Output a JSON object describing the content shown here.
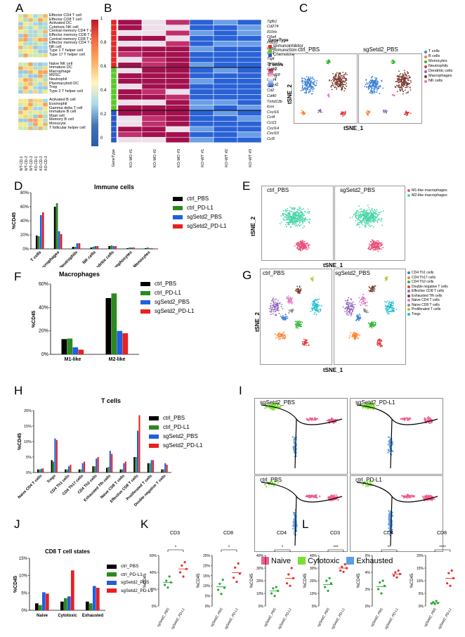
{
  "panels": {
    "A": "A",
    "B": "B",
    "C": "C",
    "D": "D",
    "E": "E",
    "F": "F",
    "G": "G",
    "H": "H",
    "I": "I",
    "J": "J",
    "K": "K",
    "L": "L"
  },
  "panelA": {
    "group1": [
      "Effector CD4 T cell",
      "Effector CD8 T cell",
      "Activated DC",
      "Cytotoxic NK cell",
      "Central memory CD4 T cell",
      "Effector memory CD8 T cell",
      "Central memory CD8 T cell",
      "Effector memory CD4 T cell",
      "NK cell",
      "Type 1 T helper cell",
      "Type 17 T helper cell"
    ],
    "group2": [
      "Naive NK cell",
      "Immature DC",
      "Macrophage",
      "MDSC",
      "Neutrophil",
      "Plasmacytoid DC",
      "Treg",
      "Type 2 T helper cell"
    ],
    "group3": [
      "Activated B cell",
      "Eosinophil",
      "Gamma delta T cell",
      "Immature B cell",
      "Mast cell",
      "Memory B cell",
      "Monocyte",
      "T follicular helper cell"
    ],
    "colorbar": [
      "1",
      "0.8",
      "0.6",
      "0.4",
      "0.2",
      "0"
    ],
    "cols": [
      "WT-CD-1",
      "WT-CD-2",
      "WT-CD-3",
      "KO-CD-1",
      "KO-CD-2",
      "KO-CD-3"
    ]
  },
  "panelB": {
    "genes": [
      "Tgfb1",
      "Cd274",
      "Il10rb",
      "Ctla4",
      "Pdcd1",
      "Lag3",
      "Idb1",
      "Tigit",
      "Sema4a",
      "Cd80",
      "Tnfsf18",
      "Cd84",
      "Cd27",
      "Cd2",
      "Cd40",
      "Tnfsf13b",
      "Icos",
      "Cxcl16",
      "Ccl4",
      "Ccl11",
      "Cxcl14",
      "Cxcl10",
      "Ccl5"
    ],
    "cols": [
      "GeneType",
      "KO-MO #1",
      "KO-MO #2",
      "KO-MO #3",
      "KO-WT #1",
      "KO-WT #2",
      "KO-WT #3"
    ],
    "legend_title": "GeneType",
    "legend_items": [
      "Immunoinhibitor",
      "ImmuneStim",
      "Chemokine"
    ],
    "z_title": "Z score",
    "z_ticks": [
      "2",
      "0",
      "-2"
    ]
  },
  "panelC": {
    "left_title": "ctrl_PBS",
    "right_title": "sgSetd2_PBS",
    "xlabel": "tSNE_1",
    "ylabel": "tSNE_2",
    "legend": [
      {
        "label": "T cells",
        "color": "#3d82d6"
      },
      {
        "label": "B cells",
        "color": "#ff7f27"
      },
      {
        "label": "Monocytes",
        "color": "#2eb82e"
      },
      {
        "label": "Neutrophils",
        "color": "#e03a3a"
      },
      {
        "label": "Dendritic cells",
        "color": "#9467bd"
      },
      {
        "label": "Macrophages",
        "color": "#7a3b2e"
      },
      {
        "label": "NK cells",
        "color": "#e377c2"
      }
    ]
  },
  "panelD": {
    "title": "Immune cells",
    "ylabel": "%CD45",
    "chart_data": {
      "type": "bar",
      "title": "Immune cells",
      "ylabel": "%CD45",
      "ylim": [
        0,
        80
      ],
      "yticks": [
        "0%",
        "20%",
        "40%",
        "60%",
        "80%"
      ],
      "categories": [
        "T cells",
        "Macrophages",
        "Neutrophils",
        "NK cells",
        "Dendritic cells",
        "B lymphocytes",
        "Monocytes"
      ],
      "series": [
        {
          "name": "ctrl_PBS",
          "color": "#000000",
          "values": [
            19,
            60,
            3,
            2,
            4,
            1,
            1
          ]
        },
        {
          "name": "ctrl_PD-L1",
          "color": "#2c8a1e",
          "values": [
            18,
            65,
            3,
            3,
            5,
            2,
            2
          ]
        },
        {
          "name": "sgSetd2_PBS",
          "color": "#1f5fe0",
          "values": [
            48,
            25,
            8,
            4,
            4,
            2,
            1
          ]
        },
        {
          "name": "sgSetd2_PD-L1",
          "color": "#e82020",
          "values": [
            52,
            21,
            8,
            4,
            4,
            2,
            1
          ]
        }
      ]
    }
  },
  "panelE": {
    "left_title": "ctrl_PBS",
    "right_title": "sgSetd2_PBS",
    "xlabel": "tSNE_1",
    "ylabel": "tSNE_2",
    "legend": [
      {
        "label": "M1-like macrophages",
        "color": "#e8507a"
      },
      {
        "label": "M2-like macrophages",
        "color": "#49d6a8"
      }
    ]
  },
  "panelF": {
    "title": "Macrophages",
    "ylabel": "%CD45",
    "chart_data": {
      "type": "bar",
      "title": "Macrophages",
      "ylabel": "%CD45",
      "ylim": [
        0,
        60
      ],
      "yticks": [
        "0%",
        "20%",
        "40%",
        "60%"
      ],
      "categories": [
        "M1-like",
        "M2-like"
      ],
      "series": [
        {
          "name": "ctrl_PBS",
          "color": "#000000",
          "values": [
            13,
            48
          ]
        },
        {
          "name": "ctrl_PD-L1",
          "color": "#2c8a1e",
          "values": [
            13.5,
            52
          ]
        },
        {
          "name": "sgSetd2_PBS",
          "color": "#1f5fe0",
          "values": [
            6,
            20
          ]
        },
        {
          "name": "sgSetd2_PD-L1",
          "color": "#e82020",
          "values": [
            4,
            18
          ]
        }
      ]
    }
  },
  "panelG": {
    "left_title": "ctrl_PBS",
    "right_title": "sgSetd2_PBS",
    "xlabel": "tSNE_1",
    "ylabel": "tSNE_2",
    "legend": [
      {
        "label": "CD4 Th1 cells",
        "color": "#3d82d6"
      },
      {
        "label": "CD4 Th17 cells",
        "color": "#ff7f27"
      },
      {
        "label": "CD4 Th2 cells",
        "color": "#2eb82e"
      },
      {
        "label": "Double negative T cells",
        "color": "#e03a3a"
      },
      {
        "label": "Effective CD8 T cells",
        "color": "#9467bd"
      },
      {
        "label": "Exhausted Tfh cells",
        "color": "#7a3b2e"
      },
      {
        "label": "Naive CD4 T cells",
        "color": "#e377c2"
      },
      {
        "label": "Naive CD8 T cells",
        "color": "#8c8c8c"
      },
      {
        "label": "Proliferated T cells",
        "color": "#bcbd22"
      },
      {
        "label": "Tregs",
        "color": "#17becf"
      }
    ]
  },
  "panelH": {
    "title": "T cells",
    "ylabel": "%CD45",
    "chart_data": {
      "type": "bar",
      "title": "T cells",
      "ylabel": "%CD45",
      "ylim": [
        0,
        20
      ],
      "yticks": [
        "0%",
        "5%",
        "10%",
        "15%",
        "20%"
      ],
      "categories": [
        "Naive CD4 T cells",
        "Tregs",
        "CD4 Th1 cells",
        "CD4 Th17 cells",
        "CD4 Th2 cells",
        "Exhausted Tfh cells",
        "Naive CD8 T cells",
        "Effective CD8 T cells",
        "Proliferated T cells",
        "Double negative T cells"
      ],
      "series": [
        {
          "name": "ctrl_PBS",
          "color": "#000000",
          "values": [
            1,
            4,
            1,
            1,
            2,
            1.5,
            1,
            5,
            3,
            1
          ]
        },
        {
          "name": "ctrl_PD-L1",
          "color": "#2c8a1e",
          "values": [
            1,
            3.5,
            1,
            1,
            2,
            1.8,
            1,
            5,
            3,
            1
          ]
        },
        {
          "name": "sgSetd2_PBS",
          "color": "#1f5fe0",
          "values": [
            1.2,
            11,
            2,
            3,
            4.5,
            7,
            3,
            13.5,
            4,
            3
          ]
        },
        {
          "name": "sgSetd2_PD-L1",
          "color": "#e82020",
          "values": [
            1.3,
            10.5,
            2.5,
            3.5,
            5,
            6,
            3.5,
            18.5,
            4,
            2.5
          ]
        }
      ]
    }
  },
  "panelI": {
    "titles": [
      "sgSetd2_PBS",
      "sgSetd2_PD-L1",
      "ctrl_PBS",
      "ctrl_PD-L1"
    ],
    "legend": [
      {
        "label": "Naive",
        "color": "#f0608a"
      },
      {
        "label": "Cytotoxic",
        "color": "#7be02c"
      },
      {
        "label": "Exhausted",
        "color": "#5a9ee8"
      }
    ]
  },
  "panelJ": {
    "title": "CD8 T cell states",
    "ylabel": "%CD45",
    "chart_data": {
      "type": "bar",
      "title": "CD8 T cell states",
      "ylabel": "%CD45",
      "ylim": [
        0,
        15
      ],
      "yticks": [
        "0%",
        "5%",
        "10%",
        "15%"
      ],
      "categories": [
        "Naive",
        "Cytotoxic",
        "Exhausted"
      ],
      "series": [
        {
          "name": "ctrl_PBS",
          "color": "#000000",
          "values": [
            2,
            2.5,
            2.5
          ]
        },
        {
          "name": "ctrl_PD-L1",
          "color": "#2c8a1e",
          "values": [
            1.5,
            3.5,
            2
          ]
        },
        {
          "name": "sgSetd2_PBS",
          "color": "#1f5fe0",
          "values": [
            5.2,
            4,
            7
          ]
        },
        {
          "name": "sgSetd2_PD-L1",
          "color": "#e82020",
          "values": [
            4.8,
            11.5,
            6.5
          ]
        }
      ]
    }
  },
  "panelK": [
    {
      "title": "CD3",
      "ylabel": "%CD45",
      "yticks": [
        "0%",
        "20%",
        "40%",
        "60%"
      ],
      "ymax": 60,
      "sig": "*",
      "groups": [
        "sgSetd2_PBS",
        "sgSetd2_PD-L1"
      ],
      "points": [
        [
          25,
          30,
          22,
          35,
          28
        ],
        [
          40,
          48,
          35,
          52,
          44
        ]
      ],
      "means": [
        28,
        44
      ]
    },
    {
      "title": "CD8",
      "ylabel": "%CD45",
      "yticks": [
        "0%",
        "5%",
        "10%",
        "15%",
        "20%",
        "25%"
      ],
      "ymax": 25,
      "sig": "*",
      "groups": [
        "sgSetd2_PBS",
        "sgSetd2_PD-L1"
      ],
      "points": [
        [
          8,
          11,
          6,
          13,
          9
        ],
        [
          14,
          19,
          12,
          21,
          16
        ]
      ],
      "means": [
        9.5,
        16.5
      ]
    },
    {
      "title": "CD4",
      "ylabel": "%CD45",
      "yticks": [
        "0%",
        "10%",
        "20%",
        "30%",
        "40%"
      ],
      "ymax": 40,
      "sig": "*",
      "groups": [
        "sgSetd2_PBS",
        "sgSetd2_PD-L1"
      ],
      "points": [
        [
          10,
          14,
          8,
          15,
          12
        ],
        [
          18,
          25,
          16,
          30,
          22
        ]
      ],
      "means": [
        12,
        22
      ]
    }
  ],
  "panelL": [
    {
      "title": "CD3",
      "ylabel": "%CD45",
      "yticks": [
        "0%",
        "10%",
        "20%",
        "30%",
        "40%"
      ],
      "ymax": 40,
      "sig": "***",
      "groups": [
        "sgSetd2_PBS",
        "sgSetd2_PD-L1"
      ],
      "points": [
        [
          15,
          20,
          12,
          22,
          18
        ],
        [
          28,
          31,
          27,
          33,
          30
        ]
      ],
      "means": [
        17,
        30
      ]
    },
    {
      "title": "CD4",
      "ylabel": "%CD45",
      "yticks": [
        "0%",
        "2%",
        "4%",
        "6%"
      ],
      "ymax": 6,
      "sig": "**",
      "groups": [
        "sgSetd2_PBS",
        "sgSetd2_PD-L1"
      ],
      "points": [
        [
          2.0,
          2.8,
          1.5,
          3.0,
          2.4
        ],
        [
          3.6,
          4.0,
          3.4,
          4.2,
          3.8
        ]
      ],
      "means": [
        2.3,
        3.8
      ]
    },
    {
      "title": "CD8",
      "ylabel": "%CD45",
      "yticks": [
        "0%",
        "5%",
        "10%",
        "15%",
        "20%"
      ],
      "ymax": 20,
      "sig": "****",
      "groups": [
        "sgSetd2_PBS",
        "sgSetd2_PD-L1"
      ],
      "points": [
        [
          1,
          1.5,
          0.8,
          2,
          1.2
        ],
        [
          9,
          13,
          8,
          14,
          11
        ]
      ],
      "means": [
        1.3,
        11
      ]
    }
  ]
}
